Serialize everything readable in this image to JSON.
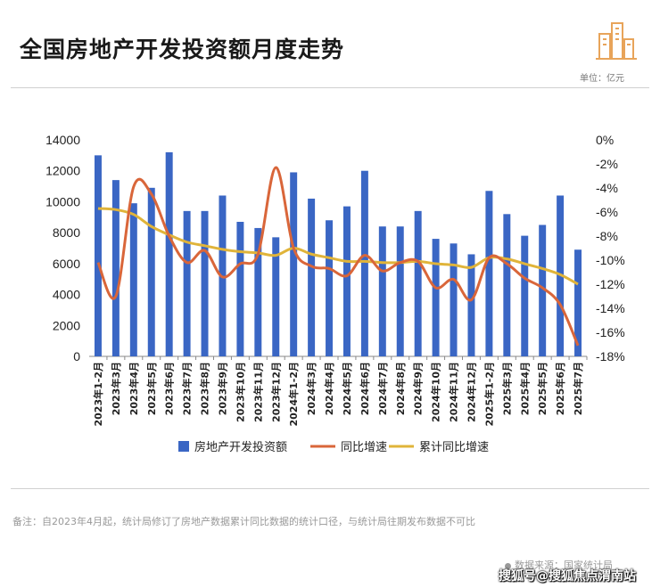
{
  "page": {
    "title": "全国房地产开发投资额月度走势",
    "unit": "单位：亿元",
    "note": "备注：自2023年4月起，统计局修订了房地产数据累计同比数据的统计口径，与统计局往期发布数据不可比",
    "source": "数据来源：国家统计局",
    "watermark": "搜狐号@搜狐焦点渭南站"
  },
  "colors": {
    "bar": "#3a66c4",
    "yoy": "#d9663a",
    "cumulative": "#e0b43a",
    "logo": "#e8a45a"
  },
  "chart_data": {
    "type": "bar",
    "categories": [
      "2023年1-2月",
      "2023年3月",
      "2023年4月",
      "2023年5月",
      "2023年6月",
      "2023年7月",
      "2023年8月",
      "2023年9月",
      "2023年10月",
      "2023年11月",
      "2023年12月",
      "2024年1-2月",
      "2024年3月",
      "2024年4月",
      "2024年5月",
      "2024年6月",
      "2024年7月",
      "2024年8月",
      "2024年9月",
      "2024年10月",
      "2024年11月",
      "2024年12月",
      "2025年1-2月",
      "2025年3月",
      "2025年4月",
      "2025年5月",
      "2025年6月",
      "2025年7月"
    ],
    "series": [
      {
        "name": "房地产开发投资额",
        "type": "bar",
        "axis": "left",
        "values": [
          13000,
          11400,
          9900,
          10900,
          13200,
          9400,
          9400,
          10400,
          8700,
          8300,
          7700,
          11900,
          10200,
          8800,
          9700,
          12000,
          8400,
          8400,
          9400,
          7600,
          7300,
          6600,
          10700,
          9200,
          7800,
          8500,
          10400,
          6900
        ]
      },
      {
        "name": "同比增速",
        "type": "line",
        "axis": "right",
        "values": [
          -10.2,
          -13.0,
          -3.9,
          -4.5,
          -8.0,
          -10.2,
          -9.2,
          -11.4,
          -10.3,
          -9.5,
          -2.3,
          -9.0,
          -10.5,
          -10.7,
          -11.3,
          -9.6,
          -10.9,
          -10.2,
          -10.1,
          -12.3,
          -11.6,
          -13.3,
          -9.8,
          -10.3,
          -11.5,
          -12.3,
          -13.7,
          -17.1
        ]
      },
      {
        "name": "累计同比增速",
        "type": "line",
        "axis": "right",
        "values": [
          -5.7,
          -5.8,
          -6.2,
          -7.2,
          -7.9,
          -8.5,
          -8.8,
          -9.1,
          -9.3,
          -9.4,
          -9.6,
          -9.0,
          -9.5,
          -9.8,
          -10.1,
          -10.1,
          -10.2,
          -10.2,
          -10.1,
          -10.3,
          -10.4,
          -10.6,
          -9.8,
          -9.9,
          -10.3,
          -10.7,
          -11.2,
          -12.0
        ]
      }
    ],
    "left_axis": {
      "ylim": [
        0,
        14000
      ],
      "ticks": [
        "0",
        "2000",
        "4000",
        "6000",
        "8000",
        "10000",
        "12000",
        "14000"
      ]
    },
    "right_axis": {
      "ylim": [
        -18,
        0
      ],
      "ticks": [
        "-18%",
        "-16%",
        "-14%",
        "-12%",
        "-10%",
        "-8%",
        "-6%",
        "-4%",
        "-2%",
        "0%"
      ]
    },
    "grid": false,
    "legend_position": "bottom"
  }
}
